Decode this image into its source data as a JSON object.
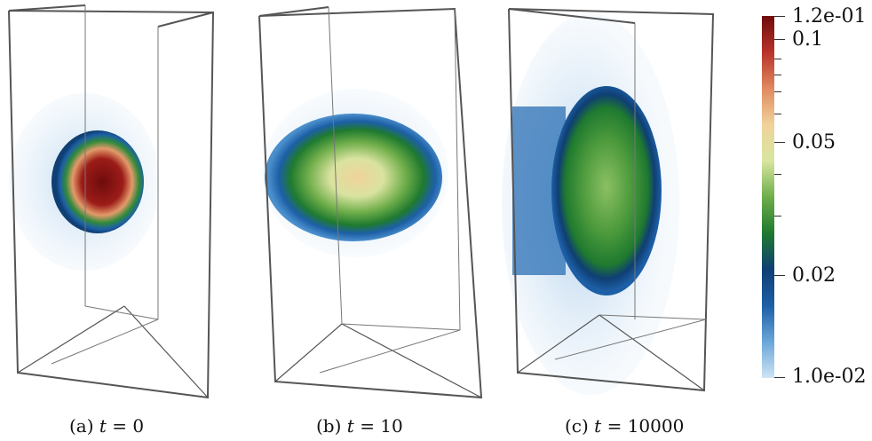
{
  "figure": {
    "panels": [
      {
        "label": "(a)",
        "var": "t",
        "eq": "= 0"
      },
      {
        "label": "(b)",
        "var": "t",
        "eq": "= 10"
      },
      {
        "label": "(c)",
        "var": "t",
        "eq": "= 10000"
      }
    ],
    "colorbar": {
      "max_label": "1.2e-01",
      "min_label": "1.0e-02",
      "labels": [
        "0.1",
        "0.05",
        "0.02"
      ],
      "colors": [
        "#cfe4f6",
        "#6aa6d8",
        "#1d5fa6",
        "#0f3f73",
        "#1f7a2f",
        "#6fae4a",
        "#d8e6a0",
        "#f0d29a",
        "#e08a5f",
        "#b8322a",
        "#6e0c0c"
      ]
    }
  }
}
